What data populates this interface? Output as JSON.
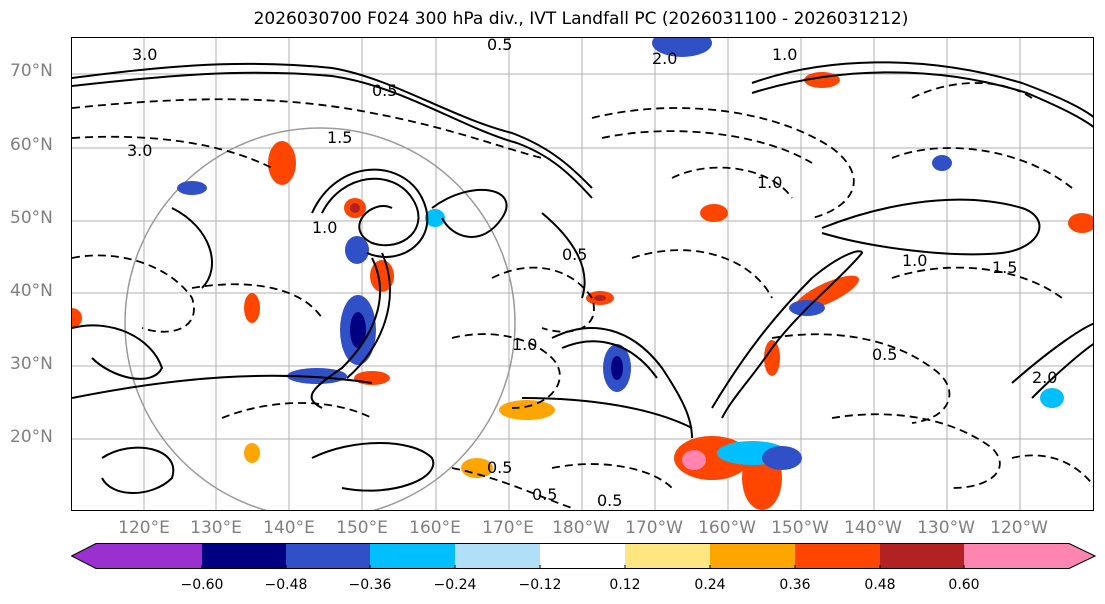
{
  "title": "2026030700 F024 300 hPa div., IVT Landfall PC (2026031100 - 2026031212)",
  "map": {
    "lat_labels": [
      "70°N",
      "60°N",
      "50°N",
      "40°N",
      "30°N",
      "20°N"
    ],
    "lon_labels": [
      "120°E",
      "130°E",
      "140°E",
      "150°E",
      "160°E",
      "170°E",
      "180°W",
      "170°W",
      "160°W",
      "150°W",
      "140°W",
      "130°W",
      "120°W"
    ],
    "contour_labels": [
      "3.0",
      "2.0",
      "0.5",
      "1.0",
      "1.5",
      "0.5",
      "3.0",
      "1.0",
      "0.5",
      "0.5",
      "1.0",
      "0.5",
      "0.5",
      "1.5",
      "0.5",
      "1.0",
      "2.0",
      "1.0"
    ]
  },
  "colorbar": {
    "ticks": [
      "−0.60",
      "−0.48",
      "−0.36",
      "−0.24",
      "−0.12",
      "0.12",
      "0.24",
      "0.36",
      "0.48",
      "0.60"
    ],
    "colors": [
      "#9b30d0",
      "#000080",
      "#3050c8",
      "#00bfff",
      "#b0e0f8",
      "#ffffff",
      "#ffe680",
      "#ffa500",
      "#ff4500",
      "#b22222",
      "#ff85b0"
    ]
  }
}
